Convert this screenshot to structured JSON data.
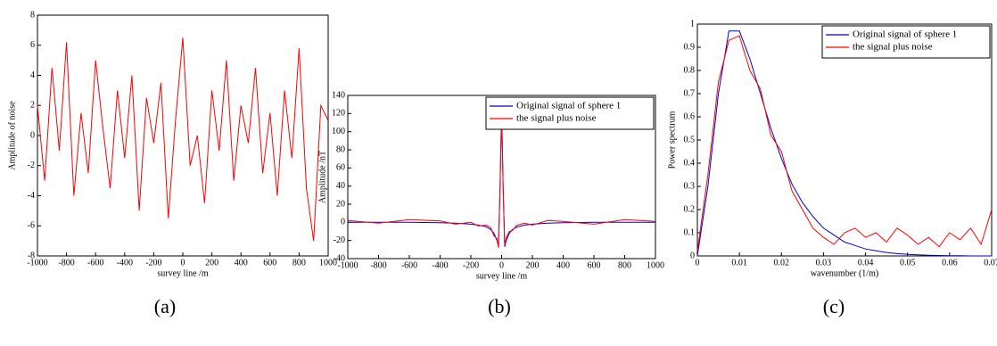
{
  "chart_data": [
    {
      "type": "line",
      "xlabel": "survey line /m",
      "ylabel": "Amplitude of noise",
      "caption": "(a)",
      "x": [
        -1000,
        -950,
        -900,
        -850,
        -800,
        -750,
        -700,
        -650,
        -600,
        -550,
        -500,
        -450,
        -400,
        -350,
        -300,
        -250,
        -200,
        -150,
        -100,
        -50,
        0,
        50,
        100,
        150,
        200,
        250,
        300,
        350,
        400,
        450,
        500,
        550,
        600,
        650,
        700,
        750,
        800,
        850,
        900,
        950,
        1000
      ],
      "values": [
        2,
        -3,
        4.5,
        -1,
        6.2,
        -4,
        1.5,
        -2.5,
        5,
        0.5,
        -3.5,
        3,
        -1.5,
        4,
        -5,
        2.5,
        -0.5,
        3.5,
        -5.5,
        1,
        6.5,
        -2,
        0,
        -4.5,
        3,
        -1,
        5,
        -3,
        2,
        -0.5,
        4.5,
        -2.5,
        1.5,
        -4,
        3,
        -1.5,
        5.8,
        -3.5,
        -7,
        2,
        1
      ],
      "color": "#ff0000",
      "xlim": [
        -1000,
        1000
      ],
      "xticks": [
        -1000,
        -800,
        -600,
        -400,
        -200,
        0,
        200,
        400,
        600,
        800,
        1000
      ],
      "ylim": [
        -8,
        8
      ],
      "yticks": [
        -8,
        -6,
        -4,
        -2,
        0,
        2,
        4,
        6,
        8
      ]
    },
    {
      "type": "line",
      "xlabel": "survey line /m",
      "ylabel": "Amplitude /nT",
      "caption": "(b)",
      "legend": "upper right",
      "x": [
        -1000,
        -800,
        -600,
        -400,
        -300,
        -200,
        -150,
        -100,
        -70,
        -50,
        -30,
        -20,
        -10,
        0,
        10,
        20,
        30,
        50,
        70,
        100,
        150,
        200,
        300,
        400,
        600,
        800,
        1000
      ],
      "series": [
        {
          "name": "Original signal of sphere 1",
          "color": "#0000cc",
          "values": [
            0,
            0,
            0,
            -0.5,
            -1,
            -2,
            -3,
            -5,
            -8,
            -12,
            -20,
            -27,
            40,
            125,
            40,
            -27,
            -20,
            -12,
            -8,
            -5,
            -3,
            -2,
            -1,
            -0.5,
            0,
            0,
            0
          ]
        },
        {
          "name": "the signal plus noise",
          "color": "#ff0000",
          "values": [
            2,
            -1,
            3,
            1.5,
            -2,
            0,
            -4,
            -3,
            -6,
            -15,
            -18,
            -28,
            45,
            122,
            38,
            -26,
            -17,
            -10,
            -9,
            -3,
            -1,
            -3,
            2,
            1,
            -2,
            3,
            1
          ]
        }
      ],
      "xlim": [
        -1000,
        1000
      ],
      "xticks": [
        -1000,
        -800,
        -600,
        -400,
        -200,
        0,
        200,
        400,
        600,
        800,
        1000
      ],
      "ylim": [
        -40,
        140
      ],
      "yticks": [
        -40,
        -20,
        0,
        20,
        40,
        60,
        80,
        100,
        120,
        140
      ]
    },
    {
      "type": "line",
      "xlabel": "wavenumber (1/m)",
      "ylabel": "Power spectrum",
      "caption": "(c)",
      "legend": "upper right",
      "x": [
        0,
        0.0025,
        0.005,
        0.0075,
        0.01,
        0.0125,
        0.015,
        0.0175,
        0.02,
        0.0225,
        0.025,
        0.0275,
        0.03,
        0.0325,
        0.035,
        0.0375,
        0.04,
        0.0425,
        0.045,
        0.0475,
        0.05,
        0.0525,
        0.055,
        0.0575,
        0.06,
        0.0625,
        0.065,
        0.0675,
        0.07
      ],
      "series": [
        {
          "name": "Original signal of sphere 1",
          "color": "#0000cc",
          "values": [
            0,
            0.3,
            0.7,
            0.97,
            0.97,
            0.85,
            0.7,
            0.55,
            0.42,
            0.31,
            0.23,
            0.17,
            0.12,
            0.09,
            0.06,
            0.045,
            0.03,
            0.022,
            0.015,
            0.01,
            0.007,
            0.005,
            0.003,
            0.002,
            0.001,
            0.001,
            0,
            0,
            0
          ]
        },
        {
          "name": "the signal plus noise",
          "color": "#ff0000",
          "values": [
            0.02,
            0.35,
            0.75,
            0.93,
            0.95,
            0.8,
            0.72,
            0.52,
            0.45,
            0.28,
            0.2,
            0.12,
            0.08,
            0.05,
            0.1,
            0.12,
            0.08,
            0.1,
            0.06,
            0.12,
            0.09,
            0.05,
            0.08,
            0.04,
            0.1,
            0.07,
            0.12,
            0.05,
            0.2
          ]
        }
      ],
      "xlim": [
        0,
        0.07
      ],
      "xticks": [
        0,
        0.01,
        0.02,
        0.03,
        0.04,
        0.05,
        0.06,
        0.07
      ],
      "ylim": [
        0,
        1
      ],
      "yticks": [
        0,
        0.1,
        0.2,
        0.3,
        0.4,
        0.5,
        0.6,
        0.7,
        0.8,
        0.9,
        1
      ]
    }
  ]
}
